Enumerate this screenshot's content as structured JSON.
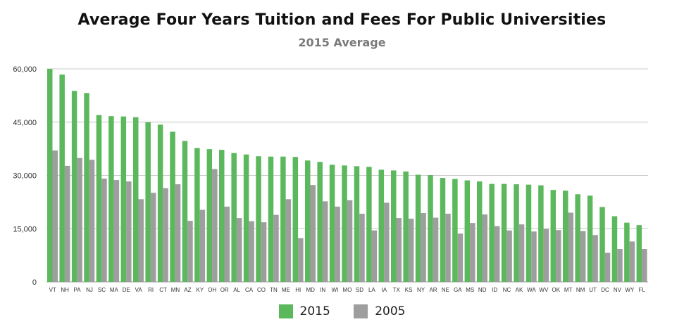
{
  "chart_data": {
    "type": "bar",
    "title": "Average Four Years Tuition and Fees For Public Universities",
    "subtitle": "2015 Average",
    "xlabel": "",
    "ylabel": "",
    "ylim": [
      0,
      60000
    ],
    "yticks": [
      "0",
      "15,000",
      "30,000",
      "45,000",
      "60,000"
    ],
    "ytick_values": [
      0,
      15000,
      30000,
      45000,
      60000
    ],
    "grid": true,
    "legend_position": "bottom",
    "categories": [
      "VT",
      "NH",
      "PA",
      "NJ",
      "SC",
      "MA",
      "DE",
      "VA",
      "RI",
      "CT",
      "MN",
      "AZ",
      "KY",
      "OH",
      "OR",
      "AL",
      "CA",
      "CO",
      "TN",
      "ME",
      "HI",
      "MD",
      "IN",
      "WI",
      "MO",
      "SD",
      "LA",
      "IA",
      "TX",
      "KS",
      "NY",
      "AR",
      "NE",
      "GA",
      "MS",
      "ND",
      "ID",
      "NC",
      "AK",
      "WA",
      "WV",
      "OK",
      "MT",
      "NM",
      "UT",
      "DC",
      "NV",
      "WY",
      "FL"
    ],
    "series": [
      {
        "name": "2015",
        "color": "#5cb85c",
        "values": [
          60000,
          58400,
          53800,
          53200,
          47000,
          46700,
          46600,
          46400,
          45000,
          44300,
          42300,
          39700,
          37700,
          37400,
          37200,
          36300,
          35900,
          35400,
          35300,
          35300,
          35200,
          34200,
          33800,
          33000,
          32800,
          32600,
          32400,
          31600,
          31400,
          31100,
          30200,
          30100,
          29300,
          29000,
          28600,
          28300,
          27600,
          27600,
          27500,
          27400,
          27200,
          25900,
          25700,
          24700,
          24300,
          21100,
          18500,
          16700,
          16000
        ]
      },
      {
        "name": "2005",
        "color": "#9e9e9e",
        "values": [
          37000,
          32700,
          34900,
          34400,
          29100,
          28700,
          28300,
          23300,
          25100,
          26400,
          27500,
          17200,
          20300,
          31800,
          21200,
          18000,
          17100,
          16800,
          18900,
          23300,
          12300,
          27300,
          22700,
          21200,
          23000,
          19200,
          14500,
          22300,
          18000,
          17800,
          19400,
          18100,
          19200,
          13600,
          16600,
          19000,
          15700,
          14500,
          16200,
          14200,
          14900,
          14600,
          19500,
          14300,
          13200,
          8200,
          9300,
          11400,
          9300
        ]
      }
    ]
  }
}
